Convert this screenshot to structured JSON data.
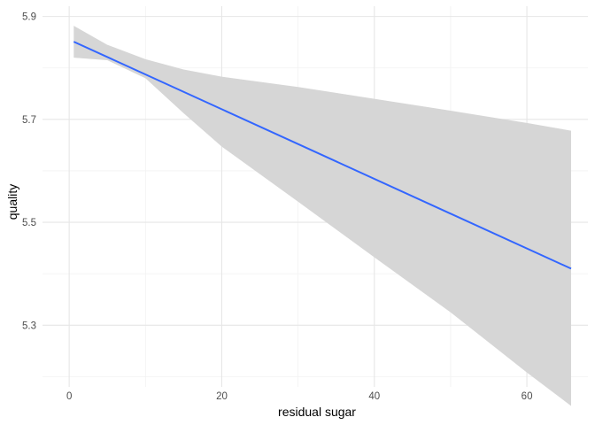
{
  "chart_data": {
    "type": "line",
    "title": "",
    "xlabel": "residual sugar",
    "ylabel": "quality",
    "xlim": [
      -3.5,
      68
    ],
    "ylim": [
      5.18,
      5.92
    ],
    "x_ticks": [
      0,
      20,
      40,
      60
    ],
    "x_tick_labels": [
      "0",
      "20",
      "40",
      "60"
    ],
    "x_minor_ticks": [
      10,
      30,
      50
    ],
    "y_ticks": [
      5.3,
      5.5,
      5.7,
      5.9
    ],
    "y_tick_labels": [
      "5.3",
      "5.5",
      "5.7",
      "5.9"
    ],
    "y_minor_ticks": [
      5.2,
      5.4,
      5.6,
      5.8
    ],
    "grid": true,
    "series": [
      {
        "x": [
          0.6,
          65.8
        ],
        "y": [
          5.851,
          5.41
        ],
        "color": "#3366ff",
        "confidence_band": {
          "x": [
            0.6,
            5,
            10,
            15,
            20,
            30,
            40,
            50,
            60,
            65.8
          ],
          "upper": [
            5.882,
            5.845,
            5.817,
            5.797,
            5.783,
            5.763,
            5.74,
            5.717,
            5.693,
            5.678
          ],
          "lower": [
            5.82,
            5.815,
            5.78,
            5.712,
            5.647,
            5.54,
            5.432,
            5.325,
            5.208,
            5.143
          ],
          "color": "#d6d6d6"
        }
      }
    ]
  }
}
